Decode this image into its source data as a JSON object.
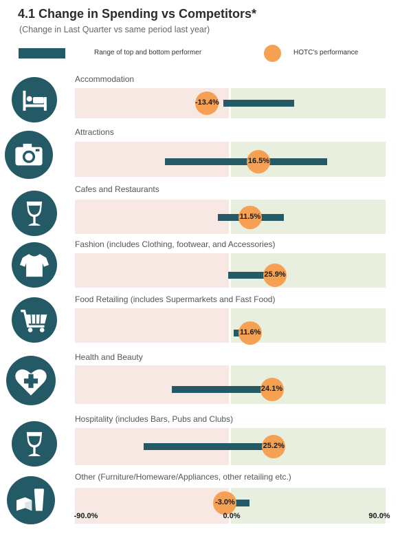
{
  "title": "4.1 Change in Spending vs Competitors*",
  "subtitle": "(Change in Last Quarter vs same period last year)",
  "legend": {
    "range_label": "Range of top and bottom performer",
    "point_label": "HOTC's performance"
  },
  "colors": {
    "bar": "#235a66",
    "point": "#f5a052",
    "negative_band": "#f8e8e4",
    "positive_band": "#e9efde"
  },
  "chart_data": {
    "type": "range-dot",
    "xlim": [
      -90,
      90
    ],
    "ticks": [
      "-90.0%",
      "0.0%",
      "90.0%"
    ],
    "legend_position": "top",
    "categories": [
      {
        "name": "Accommodation",
        "icon": "bed-icon",
        "min": -4,
        "max": 37,
        "value": -13.4,
        "value_label": "-13.4%"
      },
      {
        "name": "Attractions",
        "icon": "camera-icon",
        "min": -38,
        "max": 56,
        "value": 16.5,
        "value_label": "16.5%"
      },
      {
        "name": "Cafes and Restaurants",
        "icon": "wine-glass-icon",
        "min": -7,
        "max": 31,
        "value": 11.5,
        "value_label": "11.5%"
      },
      {
        "name": "Fashion (includes Clothing, footwear, and Accessories)",
        "icon": "tshirt-icon",
        "min": -1,
        "max": 26,
        "value": 25.9,
        "value_label": "25.9%"
      },
      {
        "name": "Food Retailing (includes Supermarkets and Fast Food)",
        "icon": "shopping-cart-icon",
        "min": 2,
        "max": 12,
        "value": 11.6,
        "value_label": "11.6%"
      },
      {
        "name": "Health and Beauty",
        "icon": "heart-cross-icon",
        "min": -34,
        "max": 24,
        "value": 24.1,
        "value_label": "24.1%"
      },
      {
        "name": "Hospitality (includes Bars, Pubs and Clubs)",
        "icon": "wine-glass-icon",
        "min": -50,
        "max": 25,
        "value": 25.2,
        "value_label": "25.2%"
      },
      {
        "name": "Other (Furniture/Homeware/Appliances, other retailing etc.)",
        "icon": "furniture-icon",
        "min": 0,
        "max": 11,
        "value": -3.0,
        "value_label": "-3.0%"
      }
    ]
  }
}
